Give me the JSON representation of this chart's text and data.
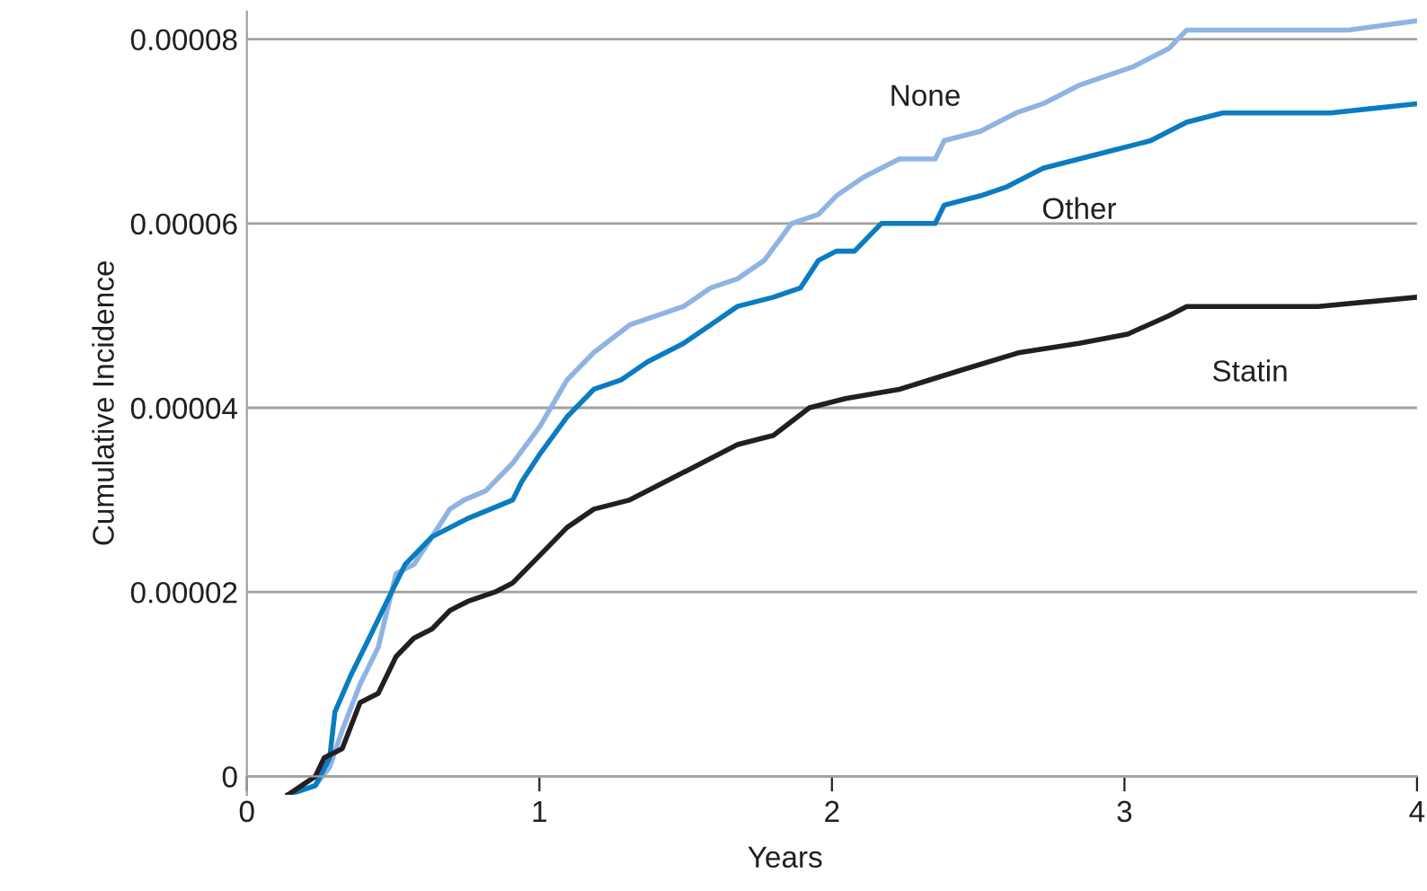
{
  "chart_data": {
    "type": "line",
    "xlabel": "Years",
    "ylabel": "Cumulative Incidence",
    "xlim": [
      0,
      4
    ],
    "xticks": [
      0,
      1,
      2,
      3,
      4
    ],
    "ylim": [
      -2e-06,
      8.3e-05
    ],
    "yticks": [
      0,
      {
        "value": 2e-05,
        "label": "0.00002"
      },
      {
        "value": 4e-05,
        "label": "0.00004"
      },
      {
        "value": 6e-05,
        "label": "0.00006"
      },
      {
        "value": 8e-05,
        "label": "0.00008"
      }
    ],
    "grid": "y",
    "legend": false,
    "marker": "none",
    "line_style": "solid",
    "series": [
      {
        "name": "None",
        "color": "#8fb4e3",
        "x": [
          0.141,
          0.234,
          0.283,
          0.326,
          0.387,
          0.449,
          0.51,
          0.571,
          0.633,
          0.694,
          0.743,
          0.817,
          0.909,
          1.002,
          1.094,
          1.186,
          1.309,
          1.401,
          1.493,
          1.585,
          1.677,
          1.769,
          1.862,
          1.954,
          2.015,
          2.107,
          2.23,
          2.353,
          2.384,
          2.507,
          2.63,
          2.722,
          2.845,
          2.937,
          3.029,
          3.152,
          3.213,
          3.459,
          3.521,
          3.766,
          4.0
        ],
        "values": [
          -2e-06,
          -1e-06,
          1e-06,
          5e-06,
          1e-05,
          1.4e-05,
          2.2e-05,
          2.3e-05,
          2.6e-05,
          2.9e-05,
          3e-05,
          3.1e-05,
          3.4e-05,
          3.8e-05,
          4.3e-05,
          4.6e-05,
          4.9e-05,
          5e-05,
          5.1e-05,
          5.3e-05,
          5.4e-05,
          5.6e-05,
          6e-05,
          6.1e-05,
          6.3e-05,
          6.5e-05,
          6.7e-05,
          6.7e-05,
          6.9e-05,
          7e-05,
          7.2e-05,
          7.3e-05,
          7.5e-05,
          7.6e-05,
          7.7e-05,
          7.9e-05,
          8.1e-05,
          8.1e-05,
          8.1e-05,
          8.1e-05,
          8.2e-05
        ]
      },
      {
        "name": "Other",
        "color": "#0a7cc1",
        "x": [
          0.141,
          0.234,
          0.283,
          0.301,
          0.356,
          0.418,
          0.479,
          0.541,
          0.633,
          0.756,
          0.909,
          0.94,
          1.002,
          1.094,
          1.186,
          1.278,
          1.37,
          1.493,
          1.585,
          1.677,
          1.8,
          1.892,
          1.954,
          2.015,
          2.077,
          2.169,
          2.261,
          2.353,
          2.384,
          2.507,
          2.599,
          2.722,
          2.845,
          2.968,
          3.09,
          3.213,
          3.336,
          3.705,
          4.0
        ],
        "values": [
          -2e-06,
          -1e-06,
          2e-06,
          7e-06,
          1.1e-05,
          1.5e-05,
          1.9e-05,
          2.3e-05,
          2.6e-05,
          2.8e-05,
          3e-05,
          3.2e-05,
          3.5e-05,
          3.9e-05,
          4.2e-05,
          4.3e-05,
          4.5e-05,
          4.7e-05,
          4.9e-05,
          5.1e-05,
          5.2e-05,
          5.3e-05,
          5.6e-05,
          5.7e-05,
          5.7e-05,
          6e-05,
          6e-05,
          6e-05,
          6.2e-05,
          6.3e-05,
          6.4e-05,
          6.6e-05,
          6.7e-05,
          6.8e-05,
          6.9e-05,
          7.1e-05,
          7.2e-05,
          7.2e-05,
          7.3e-05
        ]
      },
      {
        "name": "Statin",
        "color": "#231f20",
        "x": [
          0.141,
          0.234,
          0.264,
          0.326,
          0.387,
          0.449,
          0.51,
          0.571,
          0.633,
          0.694,
          0.756,
          0.848,
          0.909,
          1.002,
          1.094,
          1.186,
          1.309,
          1.432,
          1.555,
          1.677,
          1.8,
          1.923,
          2.046,
          2.23,
          2.433,
          2.642,
          2.845,
          3.011,
          3.152,
          3.213,
          3.662,
          4.0
        ],
        "values": [
          -2e-06,
          0,
          2e-06,
          3e-06,
          8e-06,
          9e-06,
          1.3e-05,
          1.5e-05,
          1.6e-05,
          1.8e-05,
          1.9e-05,
          2e-05,
          2.1e-05,
          2.4e-05,
          2.7e-05,
          2.9e-05,
          3e-05,
          3.2e-05,
          3.4e-05,
          3.6e-05,
          3.7e-05,
          4e-05,
          4.1e-05,
          4.2e-05,
          4.4e-05,
          4.6e-05,
          4.7e-05,
          4.8e-05,
          5e-05,
          5.1e-05,
          5.1e-05,
          5.2e-05
        ]
      }
    ]
  }
}
